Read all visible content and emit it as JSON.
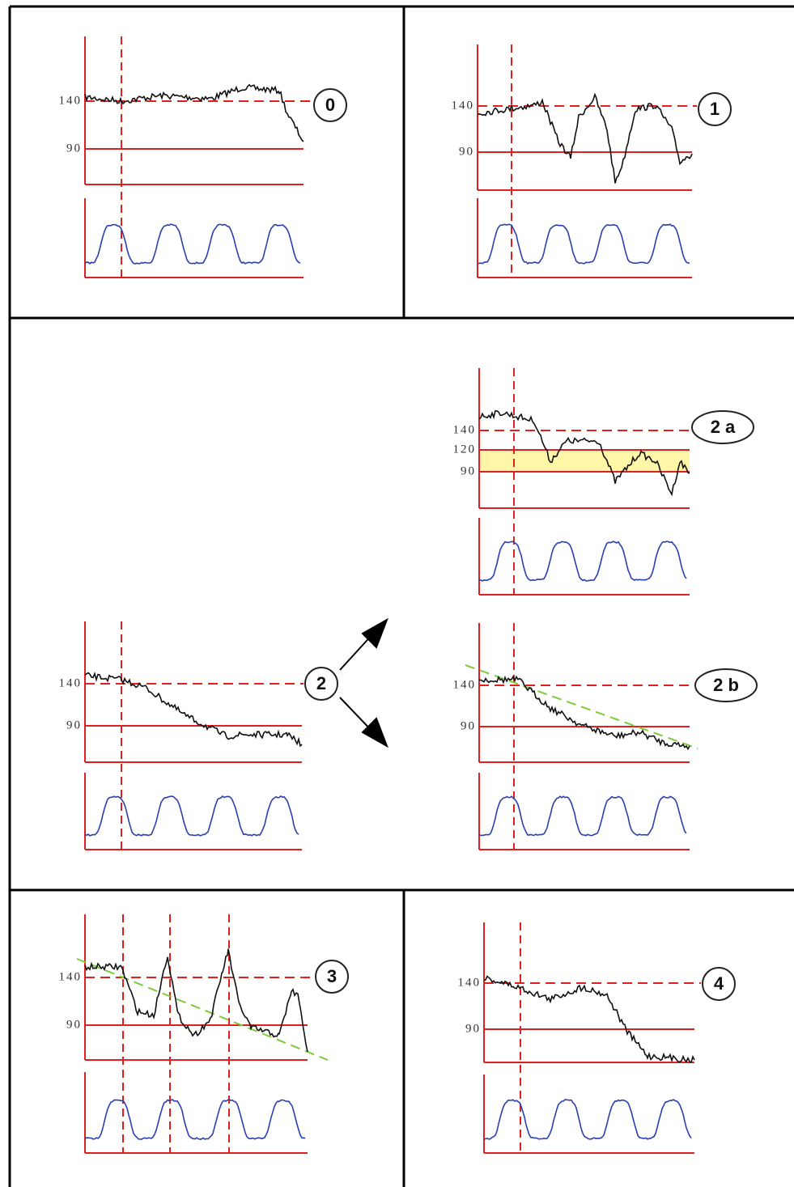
{
  "panels": [
    {
      "label": "0",
      "ticks": [
        "140",
        "90"
      ]
    },
    {
      "label": "1",
      "ticks": [
        "140",
        "90"
      ]
    },
    {
      "label": "2 a",
      "ticks": [
        "140",
        "120",
        "90"
      ]
    },
    {
      "label": "2",
      "ticks": [
        "140",
        "90"
      ]
    },
    {
      "label": "2 b",
      "ticks": [
        "140",
        "90"
      ]
    },
    {
      "label": "3",
      "ticks": [
        "140",
        "90"
      ]
    },
    {
      "label": "4",
      "ticks": [
        "140",
        "90"
      ]
    }
  ]
}
